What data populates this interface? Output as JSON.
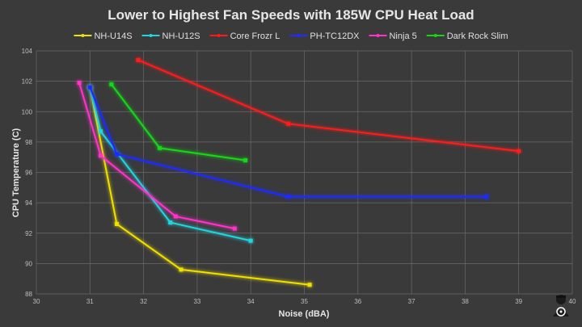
{
  "chart_data": {
    "type": "line",
    "title": "Lower to Highest Fan Speeds with 185W CPU Heat Load",
    "xlabel": "Noise (dBA)",
    "ylabel": "CPU Temperature (C)",
    "xlim": [
      30,
      40
    ],
    "ylim": [
      88,
      104
    ],
    "x_ticks": [
      "30",
      "31",
      "32",
      "33",
      "34",
      "35",
      "36",
      "37",
      "38",
      "39",
      "40"
    ],
    "y_ticks": [
      "88",
      "90",
      "92",
      "94",
      "96",
      "98",
      "100",
      "102",
      "104"
    ],
    "grid": true,
    "legend_position": "top",
    "series": [
      {
        "name": "NH-U14S",
        "color": "#f0e000",
        "x": [
          31.0,
          31.5,
          32.7,
          35.1
        ],
        "y": [
          101.6,
          92.6,
          89.6,
          88.6
        ]
      },
      {
        "name": "NH-U12S",
        "color": "#22d6e0",
        "x": [
          31.0,
          31.2,
          32.5,
          34.0
        ],
        "y": [
          101.6,
          98.7,
          92.7,
          91.5
        ]
      },
      {
        "name": "Core Frozr L",
        "color": "#ff1a1a",
        "x": [
          31.9,
          34.7,
          39.0
        ],
        "y": [
          103.4,
          99.2,
          97.4
        ]
      },
      {
        "name": "PH-TC12DX",
        "color": "#1f2bff",
        "x": [
          31.0,
          31.5,
          34.7,
          38.4
        ],
        "y": [
          101.6,
          97.2,
          94.4,
          94.4
        ]
      },
      {
        "name": "Ninja 5",
        "color": "#ff33cc",
        "x": [
          30.8,
          31.2,
          32.6,
          33.7
        ],
        "y": [
          101.9,
          97.1,
          93.1,
          92.3
        ]
      },
      {
        "name": "Dark Rock Slim",
        "color": "#14d814",
        "x": [
          31.4,
          32.3,
          33.9
        ],
        "y": [
          101.8,
          97.6,
          96.8
        ]
      }
    ]
  }
}
